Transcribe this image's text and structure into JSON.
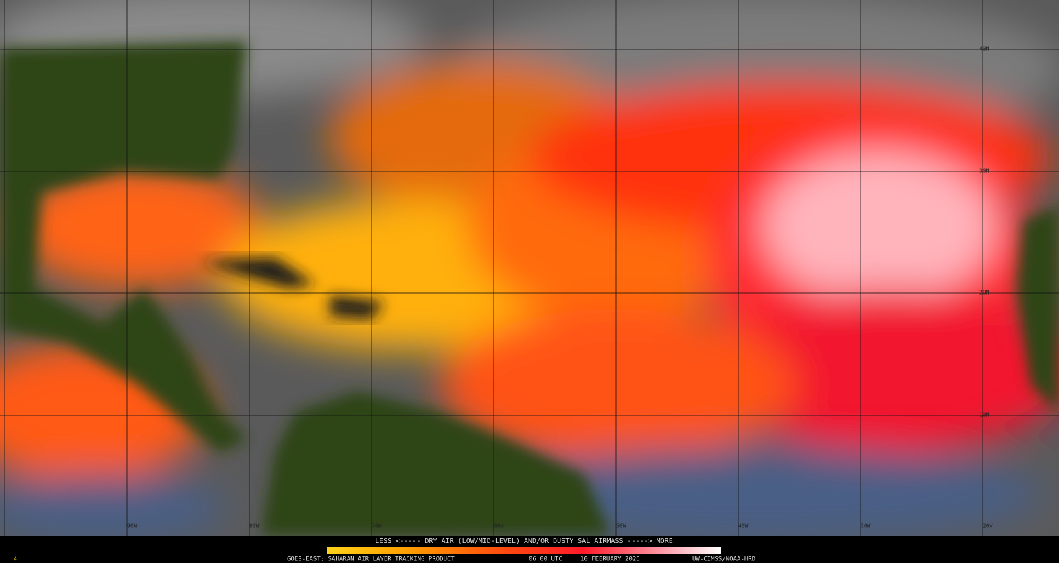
{
  "map": {
    "lat_labels": [
      "40N",
      "30N",
      "20N",
      "10N"
    ],
    "lon_labels": [
      "90W",
      "80W",
      "70W",
      "60W",
      "50W",
      "40W",
      "30W",
      "20W"
    ]
  },
  "legend": {
    "caption": "LESS <----- DRY AIR (LOW/MID-LEVEL) AND/OR DUSTY SAL AIRMASS -----> MORE",
    "product": "GOES-EAST: SAHARAN AIR LAYER TRACKING PRODUCT",
    "time": "06:00 UTC",
    "date": "10 FEBRUARY 2026",
    "credit": "UW-CIMSS/NOAA-HRD"
  },
  "frame_number": "4"
}
